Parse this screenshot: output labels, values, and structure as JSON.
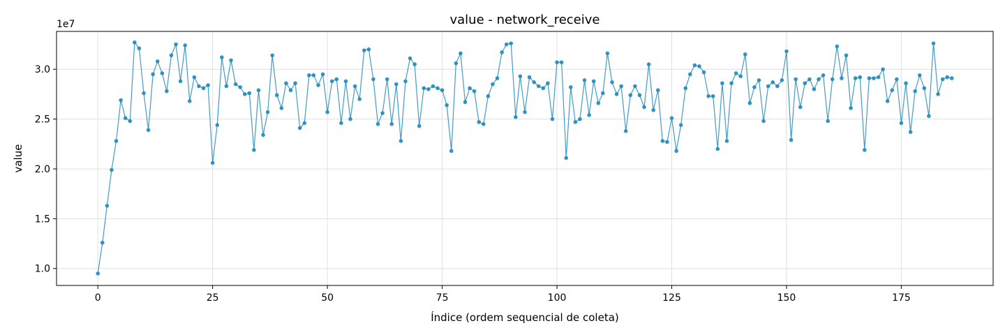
{
  "chart_data": {
    "type": "line",
    "title": "value - network_receive",
    "xlabel": "Índice (ordem sequencial de coleta)",
    "ylabel": "value",
    "y_multiplier_label": "1e7",
    "xlim": [
      -9,
      195
    ],
    "ylim": [
      0.83,
      3.38
    ],
    "xticks": [
      0,
      25,
      50,
      75,
      100,
      125,
      150,
      175
    ],
    "xtick_labels": [
      "0",
      "25",
      "50",
      "75",
      "100",
      "125",
      "150",
      "175"
    ],
    "yticks": [
      1.0,
      1.5,
      2.0,
      2.5,
      3.0
    ],
    "ytick_labels": [
      "1.0",
      "1.5",
      "2.0",
      "2.5",
      "3.0"
    ],
    "grid": true,
    "color": "#1f8bbd",
    "series": [
      {
        "x": [
          0,
          1,
          2,
          3,
          4,
          5,
          6,
          7,
          8,
          9,
          10,
          11,
          12,
          13,
          14,
          15,
          16,
          17,
          18,
          19,
          20,
          21,
          22,
          23,
          24,
          25,
          26,
          27,
          28,
          29,
          30,
          31,
          32,
          33,
          34,
          35,
          36,
          37,
          38,
          39,
          40,
          41,
          42,
          43,
          44,
          45,
          46,
          47,
          48,
          49,
          50,
          51,
          52,
          53,
          54,
          55,
          56,
          57,
          58,
          59,
          60,
          61,
          62,
          63,
          64,
          65,
          66,
          67,
          68,
          69,
          70,
          71,
          72,
          73,
          74,
          75,
          76,
          77,
          78,
          79,
          80,
          81,
          82,
          83,
          84,
          85,
          86,
          87,
          88,
          89,
          90,
          91,
          92,
          93,
          94,
          95,
          96,
          97,
          98,
          99,
          100,
          101,
          102,
          103,
          104,
          105,
          106,
          107,
          108,
          109,
          110,
          111,
          112,
          113,
          114,
          115,
          116,
          117,
          118,
          119,
          120,
          121,
          122,
          123,
          124,
          125,
          126,
          127,
          128,
          129,
          130,
          131,
          132,
          133,
          134,
          135,
          136,
          137,
          138,
          139,
          140,
          141,
          142,
          143,
          144,
          145,
          146,
          147,
          148,
          149,
          150,
          151,
          152,
          153,
          154,
          155,
          156,
          157,
          158,
          159,
          160,
          161,
          162,
          163,
          164,
          165,
          166,
          167,
          168,
          169,
          170,
          171,
          172,
          173,
          174,
          175,
          176,
          177,
          178,
          179,
          180,
          181,
          182,
          183,
          184,
          185,
          186
        ],
        "values": [
          0.95,
          1.26,
          1.63,
          1.99,
          2.28,
          2.69,
          2.51,
          2.48,
          3.27,
          3.21,
          2.76,
          2.39,
          2.95,
          3.08,
          2.96,
          2.78,
          3.14,
          3.25,
          2.88,
          3.24,
          2.68,
          2.92,
          2.83,
          2.81,
          2.84,
          2.06,
          2.44,
          3.12,
          2.83,
          3.09,
          2.85,
          2.82,
          2.75,
          2.76,
          2.19,
          2.79,
          2.34,
          2.57,
          3.14,
          2.74,
          2.61,
          2.86,
          2.79,
          2.86,
          2.41,
          2.46,
          2.94,
          2.94,
          2.84,
          2.95,
          2.57,
          2.88,
          2.9,
          2.46,
          2.88,
          2.5,
          2.83,
          2.7,
          3.19,
          3.2,
          2.9,
          2.45,
          2.56,
          2.9,
          2.45,
          2.85,
          2.28,
          2.88,
          3.11,
          3.05,
          2.43,
          2.81,
          2.8,
          2.83,
          2.81,
          2.79,
          2.64,
          2.18,
          3.06,
          3.16,
          2.67,
          2.81,
          2.78,
          2.47,
          2.45,
          2.73,
          2.85,
          2.91,
          3.17,
          3.25,
          3.26,
          2.52,
          2.93,
          2.57,
          2.92,
          2.87,
          2.83,
          2.81,
          2.86,
          2.5,
          3.07,
          3.07,
          2.11,
          2.82,
          2.47,
          2.5,
          2.89,
          2.54,
          2.88,
          2.66,
          2.76,
          3.16,
          2.87,
          2.75,
          2.83,
          2.38,
          2.74,
          2.83,
          2.74,
          2.62,
          3.05,
          2.59,
          2.79,
          2.28,
          2.27,
          2.51,
          2.18,
          2.44,
          2.81,
          2.95,
          3.04,
          3.03,
          2.97,
          2.73,
          2.73,
          2.2,
          2.86,
          2.28,
          2.86,
          2.96,
          2.93,
          3.15,
          2.66,
          2.82,
          2.89,
          2.48,
          2.83,
          2.87,
          2.83,
          2.89,
          3.18,
          2.29,
          2.9,
          2.62,
          2.86,
          2.9,
          2.8,
          2.9,
          2.94,
          2.48,
          2.9,
          3.23,
          2.91,
          3.14,
          2.61,
          2.91,
          2.92,
          2.19,
          2.91,
          2.91,
          2.92,
          3.0,
          2.68,
          2.79,
          2.9,
          2.46,
          2.86,
          2.37,
          2.78,
          2.94,
          2.81,
          2.53,
          3.26,
          2.75,
          2.9,
          2.92,
          2.91
        ]
      }
    ]
  }
}
